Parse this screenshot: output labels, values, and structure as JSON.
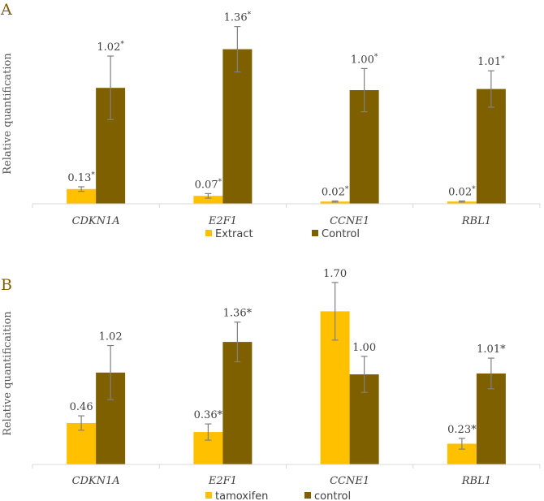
{
  "colors": {
    "series1": "#ffc000",
    "series2": "#7f6000",
    "axis": "#d9d9d9",
    "error": "#808080"
  },
  "chart_data": [
    {
      "panel": "A",
      "type": "bar",
      "ylabel": "Relative quantification",
      "categories": [
        "CDKN1A",
        "E2F1",
        "CCNE1",
        "RBL1"
      ],
      "series": [
        {
          "name": "Extract",
          "values": [
            0.13,
            0.07,
            0.02,
            0.02
          ],
          "errors": [
            0.02,
            0.02,
            0.005,
            0.005
          ],
          "labels": [
            "0.13*",
            "0.07*",
            "0.02*",
            "0.02*"
          ]
        },
        {
          "name": "Control",
          "values": [
            1.02,
            1.36,
            1.0,
            1.01
          ],
          "errors": [
            0.28,
            0.2,
            0.19,
            0.16
          ],
          "labels": [
            "1.02*",
            "1.36*",
            "1.00*",
            "1.01*"
          ]
        }
      ],
      "ylim": [
        0,
        1.6
      ],
      "grid": false,
      "legend": "bottom"
    },
    {
      "panel": "B",
      "type": "bar",
      "ylabel": "Relative quantificaition",
      "categories": [
        "CDKN1A",
        "E2F1",
        "CCNE1",
        "RBL1"
      ],
      "series": [
        {
          "name": "tamoxifen",
          "values": [
            0.46,
            0.36,
            1.7,
            0.23
          ],
          "errors": [
            0.08,
            0.09,
            0.32,
            0.06
          ],
          "labels": [
            "0.46",
            "0.36*",
            "1.70",
            "0.23*"
          ]
        },
        {
          "name": "control",
          "values": [
            1.02,
            1.36,
            1.0,
            1.01
          ],
          "errors": [
            0.3,
            0.22,
            0.2,
            0.17
          ],
          "labels": [
            "1.02",
            "1.36*",
            "1.00",
            "1.01*"
          ]
        }
      ],
      "ylim": [
        0,
        2.1
      ],
      "grid": false,
      "legend": "bottom"
    }
  ]
}
